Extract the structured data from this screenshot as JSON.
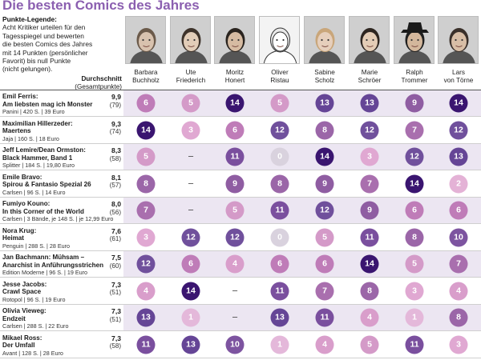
{
  "title": "Die besten Comics des Jahres",
  "legend": {
    "heading": "Punkte-Legende:",
    "lines": [
      "Acht Kritiker urteilen für den",
      "Tagesspiegel und bewerten",
      "die besten Comics des Jahres",
      "mit 14 Punkten (persönlicher",
      "Favorit) bis null Punkte",
      "(nicht gelungen)."
    ]
  },
  "average_header": {
    "title": "Durchschnitt",
    "subtitle": "(Gesamtpunkte)"
  },
  "critics": [
    {
      "first": "Barbara",
      "last": "Buchholz"
    },
    {
      "first": "Ute",
      "last": "Friederich"
    },
    {
      "first": "Moritz",
      "last": "Honert"
    },
    {
      "first": "Oliver",
      "last": "Ristau"
    },
    {
      "first": "Sabine",
      "last": "Scholz"
    },
    {
      "first": "Marie",
      "last": "Schröer"
    },
    {
      "first": "Ralph",
      "last": "Trommer"
    },
    {
      "first": "Lars",
      "last": "von Törne"
    }
  ],
  "comics": [
    {
      "line1": "Emil Ferris:",
      "line2": "Am liebsten mag ich Monster",
      "publisher": "Panini | 420 S. | 39 Euro",
      "average": "9,9",
      "total": "(79)",
      "scores": [
        "6",
        "5",
        "14",
        "5",
        "13",
        "13",
        "9",
        "14"
      ]
    },
    {
      "line1": "Maximilian Hillerzeder:",
      "line2": "Maertens",
      "publisher": "Jaja | 160 S. | 18 Euro",
      "average": "9,3",
      "total": "(74)",
      "scores": [
        "14",
        "3",
        "6",
        "12",
        "8",
        "12",
        "7",
        "12"
      ]
    },
    {
      "line1": "Jeff Lemire/Dean Ormston:",
      "line2": "Black Hammer, Band 1",
      "publisher": "Splitter | 184 S. | 19,80 Euro",
      "average": "8,3",
      "total": "(58)",
      "scores": [
        "5",
        "–",
        "11",
        "0",
        "14",
        "3",
        "12",
        "13"
      ]
    },
    {
      "line1": "Emile Bravo:",
      "line2": "Spirou & Fantasio Spezial 26",
      "publisher": "Carlsen | 96 S. | 14 Euro",
      "average": "8,1",
      "total": "(57)",
      "scores": [
        "8",
        "–",
        "9",
        "8",
        "9",
        "7",
        "14",
        "2"
      ]
    },
    {
      "line1": "Fumiyo Kouno:",
      "line2": "In this Corner of the World",
      "publisher": "Carlsen | 3 Bände, je 148 S. | je 12,99 Euro",
      "average": "8,0",
      "total": "(56)",
      "scores": [
        "7",
        "–",
        "5",
        "11",
        "12",
        "9",
        "6",
        "6"
      ]
    },
    {
      "line1": "Nora Krug:",
      "line2": "Heimat",
      "publisher": "Penguin | 288 S. | 28 Euro",
      "average": "7,6",
      "total": "(61)",
      "scores": [
        "3",
        "12",
        "12",
        "0",
        "5",
        "11",
        "8",
        "10"
      ]
    },
    {
      "line1": "Jan Bachmann: Mühsam –",
      "line2": "Anarchist in Anführungsstrichen",
      "publisher": "Edition Moderne | 96 S. | 19 Euro",
      "average": "7,5",
      "total": "(60)",
      "scores": [
        "12",
        "6",
        "4",
        "6",
        "6",
        "14",
        "5",
        "7"
      ]
    },
    {
      "line1": "Jesse Jacobs:",
      "line2": "Crawl Space",
      "publisher": "Rotopol | 96 S. | 19 Euro",
      "average": "7,3",
      "total": "(51)",
      "scores": [
        "4",
        "14",
        "–",
        "11",
        "7",
        "8",
        "3",
        "4"
      ]
    },
    {
      "line1": "Olivia Vieweg:",
      "line2": "Endzeit",
      "publisher": "Carlsen | 288 S. | 22 Euro",
      "average": "7,3",
      "total": "(51)",
      "scores": [
        "13",
        "1",
        "–",
        "13",
        "11",
        "4",
        "1",
        "8"
      ]
    },
    {
      "line1": "Mikael Ross:",
      "line2": "Der Umfall",
      "publisher": "Avant | 128 S. | 28 Euro",
      "average": "7,3",
      "total": "(58)",
      "scores": [
        "11",
        "13",
        "10",
        "1",
        "4",
        "5",
        "11",
        "3"
      ]
    }
  ],
  "score_colors": {
    "0": "#d9d2de",
    "1": "#e4b8da",
    "2": "#e4b2d6",
    "3": "#e0a8d2",
    "4": "#d99ecb",
    "5": "#d49ac8",
    "6": "#bf7cb8",
    "7": "#a96fae",
    "8": "#9b66a8",
    "9": "#8f5da2",
    "10": "#7d54a0",
    "11": "#7a4f9e",
    "12": "#70509c",
    "13": "#654596",
    "14": "#3a1570"
  }
}
